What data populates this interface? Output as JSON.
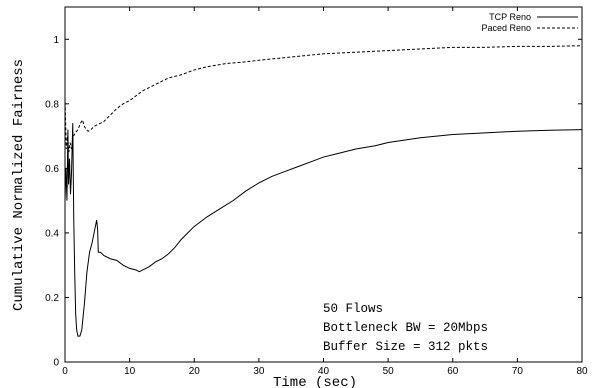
{
  "chart_data": {
    "type": "line",
    "xlabel": "Time (sec)",
    "ylabel": "Cumulative Normalized Fairness",
    "xlim": [
      0,
      80
    ],
    "ylim": [
      0,
      1.1
    ],
    "x_ticks": [
      "0",
      "10",
      "20",
      "30",
      "40",
      "50",
      "60",
      "70",
      "80"
    ],
    "y_ticks": [
      "0",
      "0.2",
      "0.4",
      "0.6",
      "0.8",
      "1"
    ],
    "legend_position": "top-right",
    "annotations": [
      "50 Flows",
      "Bottleneck BW = 20Mbps",
      "Buffer Size = 312 pkts"
    ],
    "series": [
      {
        "name": "TCP Reno",
        "style": "solid",
        "points": [
          [
            0.0,
            0.5
          ],
          [
            0.15,
            0.6
          ],
          [
            0.3,
            0.5
          ],
          [
            0.45,
            0.72
          ],
          [
            0.55,
            0.55
          ],
          [
            0.7,
            0.63
          ],
          [
            0.85,
            0.52
          ],
          [
            1.0,
            0.58
          ],
          [
            1.2,
            0.74
          ],
          [
            1.35,
            0.45
          ],
          [
            1.5,
            0.28
          ],
          [
            1.65,
            0.15
          ],
          [
            1.8,
            0.1
          ],
          [
            2.0,
            0.08
          ],
          [
            2.3,
            0.08
          ],
          [
            2.6,
            0.1
          ],
          [
            3.0,
            0.18
          ],
          [
            3.4,
            0.28
          ],
          [
            3.8,
            0.34
          ],
          [
            4.2,
            0.37
          ],
          [
            4.6,
            0.41
          ],
          [
            4.9,
            0.44
          ],
          [
            5.05,
            0.41
          ],
          [
            5.15,
            0.34
          ],
          [
            5.5,
            0.34
          ],
          [
            6.0,
            0.33
          ],
          [
            7.0,
            0.32
          ],
          [
            8.0,
            0.315
          ],
          [
            9.0,
            0.3
          ],
          [
            10.0,
            0.29
          ],
          [
            11.0,
            0.285
          ],
          [
            11.5,
            0.28
          ],
          [
            12.0,
            0.285
          ],
          [
            13.0,
            0.295
          ],
          [
            14.0,
            0.31
          ],
          [
            15.0,
            0.32
          ],
          [
            16.0,
            0.335
          ],
          [
            17.0,
            0.355
          ],
          [
            18.0,
            0.38
          ],
          [
            19.0,
            0.4
          ],
          [
            20.0,
            0.42
          ],
          [
            22.0,
            0.45
          ],
          [
            24.0,
            0.475
          ],
          [
            26.0,
            0.5
          ],
          [
            28.0,
            0.53
          ],
          [
            30.0,
            0.555
          ],
          [
            32.0,
            0.575
          ],
          [
            34.0,
            0.59
          ],
          [
            36.0,
            0.605
          ],
          [
            38.0,
            0.62
          ],
          [
            40.0,
            0.635
          ],
          [
            42.0,
            0.645
          ],
          [
            45.0,
            0.66
          ],
          [
            48.0,
            0.67
          ],
          [
            50.0,
            0.68
          ],
          [
            55.0,
            0.695
          ],
          [
            60.0,
            0.705
          ],
          [
            65.0,
            0.71
          ],
          [
            70.0,
            0.715
          ],
          [
            75.0,
            0.718
          ],
          [
            80.0,
            0.72
          ]
        ]
      },
      {
        "name": "Paced Reno",
        "style": "dashed",
        "points": [
          [
            0.0,
            0.82
          ],
          [
            0.2,
            0.66
          ],
          [
            0.4,
            0.7
          ],
          [
            0.6,
            0.65
          ],
          [
            0.8,
            0.68
          ],
          [
            1.0,
            0.66
          ],
          [
            1.3,
            0.7
          ],
          [
            1.6,
            0.71
          ],
          [
            2.0,
            0.72
          ],
          [
            2.4,
            0.74
          ],
          [
            2.7,
            0.75
          ],
          [
            3.0,
            0.73
          ],
          [
            3.3,
            0.72
          ],
          [
            3.6,
            0.715
          ],
          [
            4.0,
            0.72
          ],
          [
            4.5,
            0.73
          ],
          [
            5.0,
            0.735
          ],
          [
            6.0,
            0.745
          ],
          [
            7.0,
            0.765
          ],
          [
            8.0,
            0.785
          ],
          [
            9.0,
            0.8
          ],
          [
            10.0,
            0.81
          ],
          [
            11.0,
            0.825
          ],
          [
            12.0,
            0.84
          ],
          [
            13.0,
            0.85
          ],
          [
            14.0,
            0.86
          ],
          [
            15.0,
            0.87
          ],
          [
            16.0,
            0.88
          ],
          [
            17.0,
            0.885
          ],
          [
            18.0,
            0.89
          ],
          [
            20.0,
            0.905
          ],
          [
            22.0,
            0.915
          ],
          [
            25.0,
            0.925
          ],
          [
            28.0,
            0.93
          ],
          [
            30.0,
            0.935
          ],
          [
            35.0,
            0.945
          ],
          [
            40.0,
            0.955
          ],
          [
            45.0,
            0.96
          ],
          [
            50.0,
            0.965
          ],
          [
            55.0,
            0.97
          ],
          [
            60.0,
            0.975
          ],
          [
            65.0,
            0.975
          ],
          [
            70.0,
            0.978
          ],
          [
            75.0,
            0.978
          ],
          [
            80.0,
            0.98
          ]
        ]
      }
    ]
  }
}
